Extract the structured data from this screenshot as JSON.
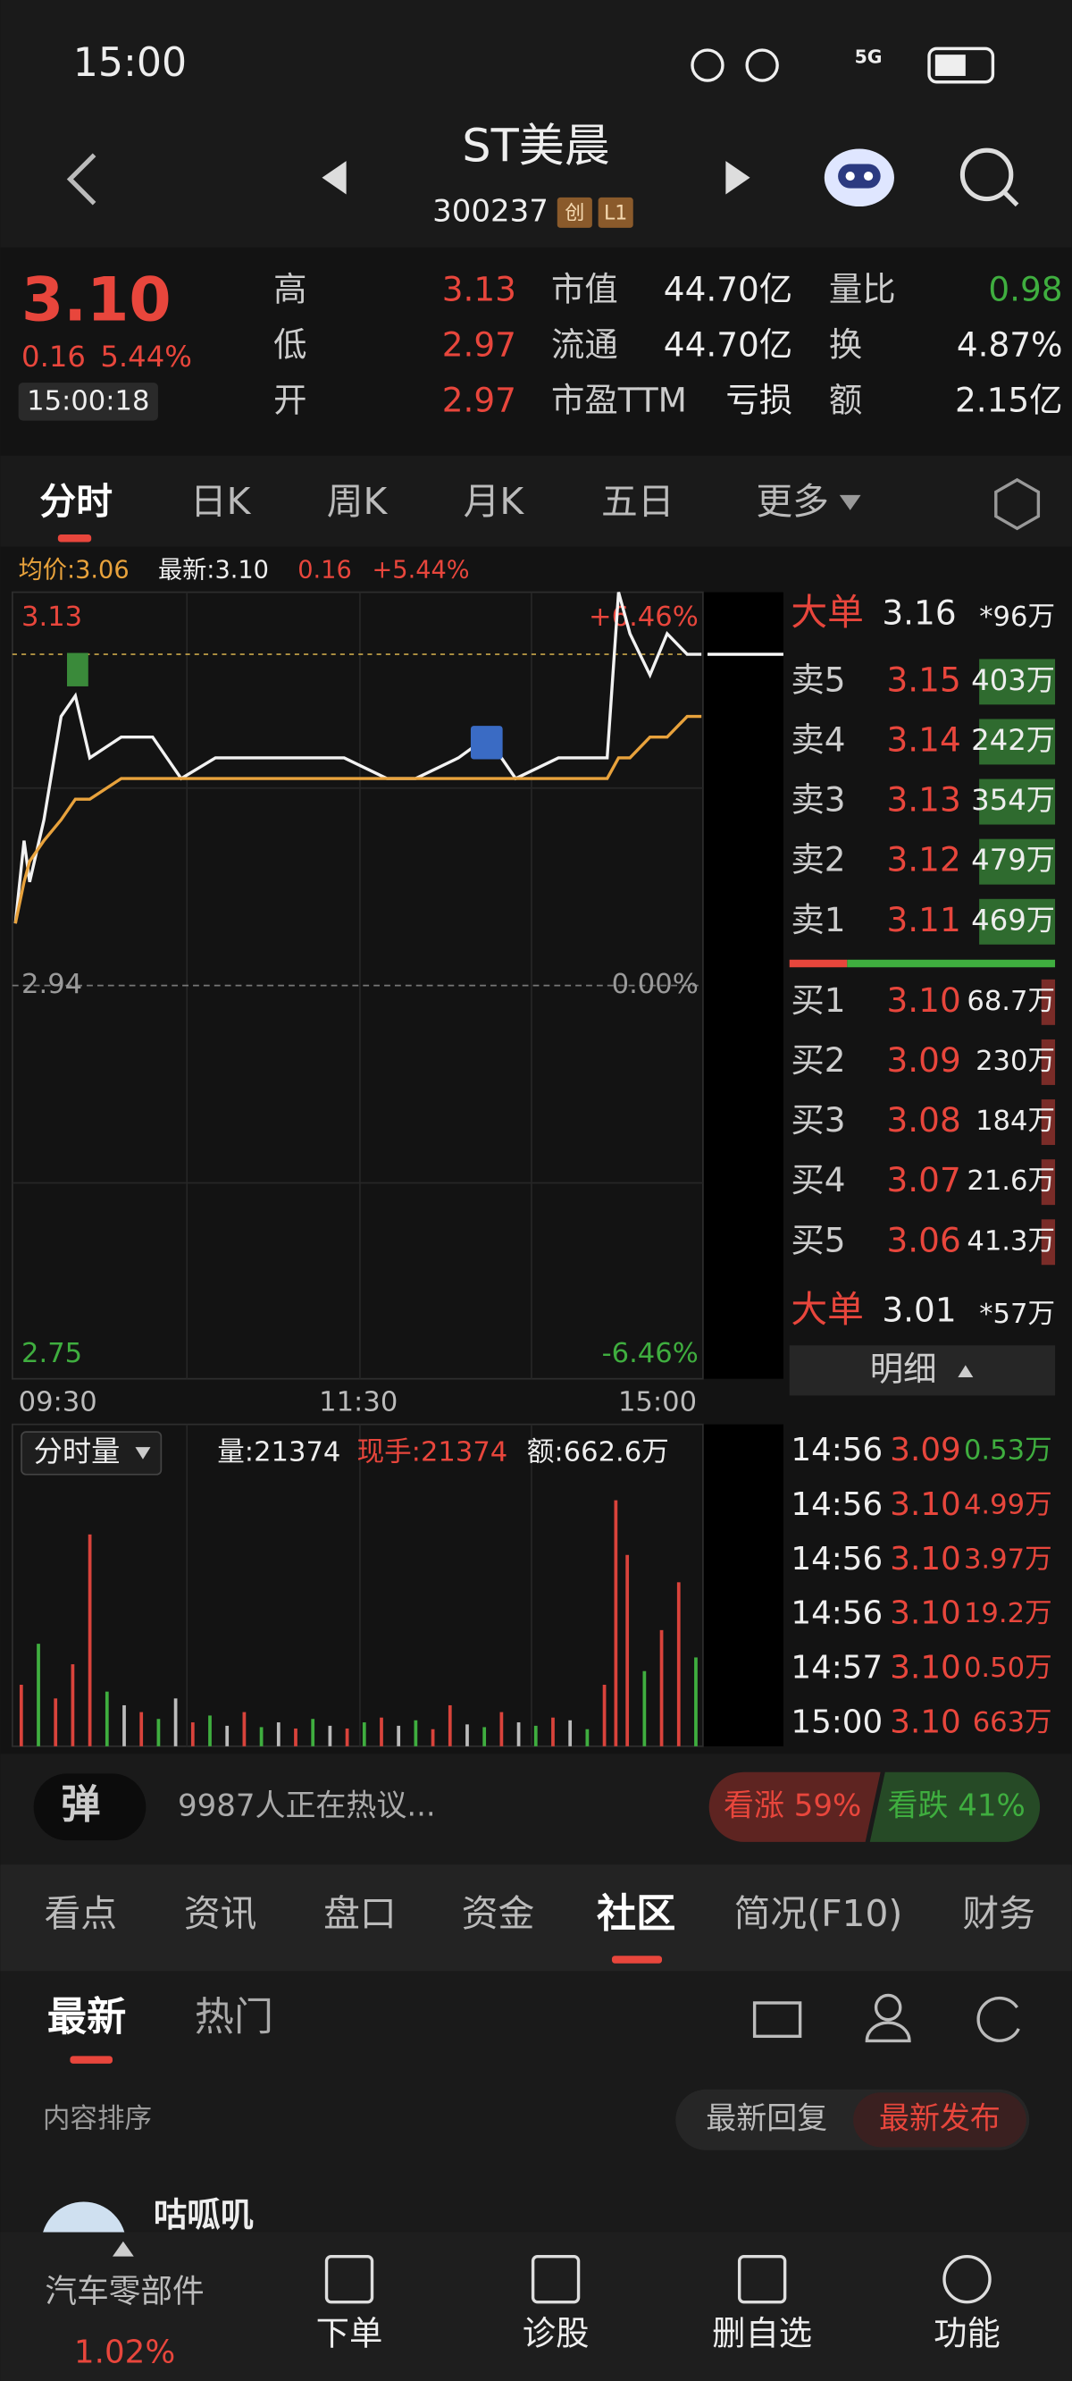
{
  "status_bar": {
    "time": "15:00",
    "network": "5G"
  },
  "header": {
    "name": "ST美晨",
    "code": "300237",
    "tags": [
      "创",
      "L1"
    ]
  },
  "quote": {
    "price": "3.10",
    "change": "0.16",
    "change_pct": "5.44%",
    "time": "15:00:18",
    "stats": [
      [
        "高",
        "3.13"
      ],
      [
        "低",
        "2.97"
      ],
      [
        "开",
        "2.97"
      ],
      [
        "市值",
        "44.70亿"
      ],
      [
        "流通",
        "44.70亿"
      ],
      [
        "市盈TTM",
        "亏损"
      ],
      [
        "量比",
        "0.98"
      ],
      [
        "换",
        "4.87%"
      ],
      [
        "额",
        "2.15亿"
      ]
    ]
  },
  "period_tabs": [
    "分时",
    "日K",
    "周K",
    "月K",
    "五日",
    "更多"
  ],
  "chart_info": {
    "avg": "均价:3.06",
    "latest": "最新:3.10",
    "change": "0.16",
    "change_pct": "+5.44%"
  },
  "chart_data": [
    {
      "type": "line",
      "x": [
        0,
        3,
        5,
        10,
        16,
        21,
        26,
        37,
        48,
        58,
        70,
        85,
        100,
        115,
        130,
        140,
        155,
        165,
        175,
        190,
        200,
        207,
        211,
        215,
        222,
        228,
        235,
        240
      ],
      "series": [
        {
          "color": "#f2f2f2",
          "values": [
            2.97,
            3.01,
            2.99,
            3.02,
            3.07,
            3.08,
            3.05,
            3.06,
            3.06,
            3.04,
            3.05,
            3.05,
            3.05,
            3.05,
            3.04,
            3.04,
            3.05,
            3.06,
            3.04,
            3.05,
            3.05,
            3.05,
            3.13,
            3.11,
            3.09,
            3.11,
            3.1,
            3.1
          ]
        },
        {
          "color": "#e8a23c",
          "values": [
            2.97,
            2.99,
            3.0,
            3.01,
            3.02,
            3.03,
            3.03,
            3.04,
            3.04,
            3.04,
            3.04,
            3.04,
            3.04,
            3.04,
            3.04,
            3.04,
            3.04,
            3.04,
            3.04,
            3.04,
            3.04,
            3.04,
            3.05,
            3.05,
            3.06,
            3.06,
            3.07,
            3.07
          ]
        }
      ],
      "xlim": [
        0,
        240
      ],
      "xticks": [
        {
          "value": 0,
          "label": "09:30"
        },
        {
          "value": 120,
          "label": "11:30"
        },
        {
          "value": 240,
          "label": "15:00"
        }
      ],
      "ylim": [
        2.75,
        3.13
      ],
      "yticks": [
        3.13,
        2.94,
        2.75
      ],
      "y2lim": [
        -6.46,
        6.46
      ],
      "y2ticks": [
        {
          "value": 6.46,
          "label": "+6.46%"
        },
        {
          "value": 0,
          "label": "0.00%"
        },
        {
          "value": -6.46,
          "label": "-6.46%"
        }
      ],
      "grid": true
    },
    {
      "type": "bar",
      "title": "分时量",
      "info": [
        "量:21374",
        "现手:21374",
        "额:662.6万"
      ],
      "x": [
        2,
        8,
        14,
        20,
        26,
        32,
        38,
        44,
        50,
        56,
        62,
        68,
        74,
        80,
        86,
        92,
        98,
        104,
        110,
        116,
        122,
        128,
        134,
        140,
        146,
        152,
        158,
        164,
        170,
        176,
        182,
        188,
        194,
        200,
        206,
        210,
        214,
        220,
        226,
        232,
        238
      ],
      "values": [
        900,
        1500,
        700,
        1200,
        3100,
        800,
        600,
        500,
        400,
        700,
        350,
        450,
        300,
        500,
        280,
        350,
        260,
        400,
        300,
        260,
        350,
        420,
        300,
        380,
        250,
        600,
        320,
        280,
        500,
        350,
        300,
        420,
        380,
        250,
        900,
        3600,
        2800,
        1100,
        1700,
        2400,
        1300
      ],
      "ylim": [
        0,
        4000
      ],
      "colors": [
        "#d9433b",
        "#3fae3f",
        "#d9433b",
        "#d9433b",
        "#d9433b",
        "#3fae3f",
        "#bbbbbb",
        "#d9433b",
        "#3fae3f",
        "#bbbbbb",
        "#d9433b",
        "#3fae3f",
        "#bbbbbb",
        "#d9433b",
        "#3fae3f",
        "#bbbbbb",
        "#d9433b",
        "#3fae3f",
        "#bbbbbb",
        "#d9433b",
        "#3fae3f",
        "#d9433b",
        "#bbbbbb",
        "#3fae3f",
        "#d9433b",
        "#d9433b",
        "#bbbbbb",
        "#3fae3f",
        "#d9433b",
        "#bbbbbb",
        "#3fae3f",
        "#d9433b",
        "#bbbbbb",
        "#3fae3f",
        "#d9433b",
        "#d9433b",
        "#d9433b",
        "#3fae3f",
        "#d9433b",
        "#d9433b",
        "#3fae3f"
      ]
    }
  ],
  "order_book": {
    "big_top": [
      "大单",
      "3.16",
      "*96万"
    ],
    "asks": [
      [
        "卖5",
        "3.15",
        "403万"
      ],
      [
        "卖4",
        "3.14",
        "242万"
      ],
      [
        "卖3",
        "3.13",
        "354万"
      ],
      [
        "卖2",
        "3.12",
        "479万"
      ],
      [
        "卖1",
        "3.11",
        "469万"
      ]
    ],
    "bids": [
      [
        "买1",
        "3.10",
        "68.7万"
      ],
      [
        "买2",
        "3.09",
        "230万"
      ],
      [
        "买3",
        "3.08",
        "184万"
      ],
      [
        "买4",
        "3.07",
        "21.6万"
      ],
      [
        "买5",
        "3.06",
        "41.3万"
      ]
    ],
    "big_bottom": [
      "大单",
      "3.01",
      "*57万"
    ],
    "detail_label": "明细",
    "trades": [
      [
        "14:56",
        "3.09",
        "0.53万"
      ],
      [
        "14:56",
        "3.10",
        "4.99万"
      ],
      [
        "14:56",
        "3.10",
        "3.97万"
      ],
      [
        "14:56",
        "3.10",
        "19.2万"
      ],
      [
        "14:57",
        "3.10",
        "0.50万"
      ],
      [
        "15:00",
        "3.10",
        "663万"
      ]
    ]
  },
  "sentiment": {
    "badge": "弹",
    "discussion": "9987人正在热议...",
    "bull": "看涨 59%",
    "bear": "看跌 41%"
  },
  "nav_tabs": {
    "items": [
      "看点",
      "资讯",
      "盘口",
      "资金",
      "社区",
      "简况(F10)",
      "财务"
    ],
    "active": 4
  },
  "community": {
    "tabs": [
      "最新",
      "热门"
    ],
    "sort_label": "内容排序",
    "sort_options": [
      "最新回复",
      "最新发布"
    ],
    "first_post_user": "咕呱叽"
  },
  "bottom_bar": {
    "sector": "汽车零部件",
    "sector_change": "1.02%",
    "actions": [
      "下单",
      "诊股",
      "删自选",
      "功能"
    ]
  }
}
